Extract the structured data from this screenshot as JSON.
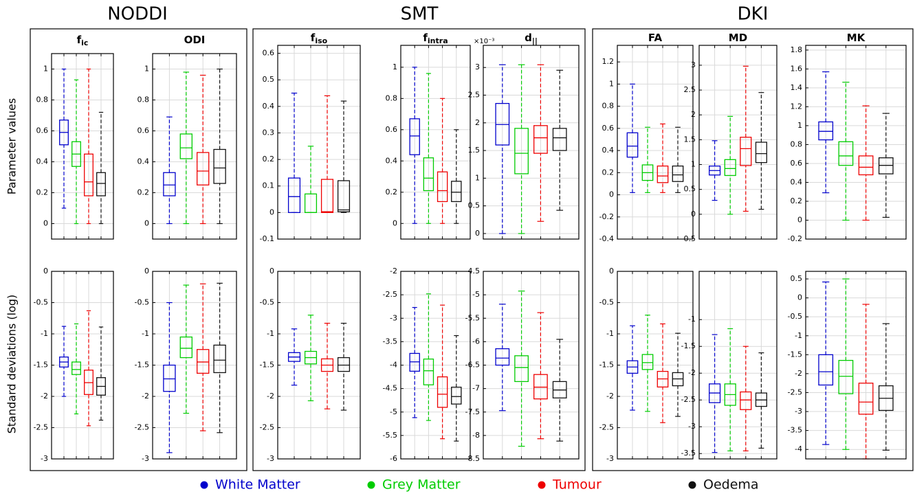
{
  "groups": [
    "NODDI",
    "SMT",
    "DKI"
  ],
  "row_labels": [
    "Parameter values",
    "Standard deviations (log)"
  ],
  "legend": [
    {
      "name": "White Matter",
      "color": "#0000cc"
    },
    {
      "name": "Grey Matter",
      "color": "#00cc00"
    },
    {
      "name": "Tumour",
      "color": "#ee0000"
    },
    {
      "name": "Oedema",
      "color": "#111111"
    }
  ],
  "chart_data": [
    {
      "type": "box",
      "title": "f",
      "title_subscript": "ic",
      "grid": true,
      "ylim": [
        -0.1,
        1.1
      ],
      "yticks": [
        0,
        0.2,
        0.4,
        0.6,
        0.8,
        1
      ],
      "boxes": [
        [
          0.1,
          0.51,
          0.59,
          0.67,
          1.0
        ],
        [
          0,
          0.37,
          0.45,
          0.53,
          0.93
        ],
        [
          0,
          0.18,
          0.27,
          0.45,
          1.0
        ],
        [
          0,
          0.18,
          0.26,
          0.33,
          0.72
        ]
      ]
    },
    {
      "type": "box",
      "title": "ODI",
      "grid": true,
      "ylim": [
        -0.1,
        1.1
      ],
      "yticks": [
        0,
        0.2,
        0.4,
        0.6,
        0.8,
        1
      ],
      "boxes": [
        [
          0,
          0.18,
          0.25,
          0.33,
          0.69
        ],
        [
          0,
          0.42,
          0.49,
          0.58,
          0.98
        ],
        [
          0,
          0.25,
          0.34,
          0.46,
          0.96
        ],
        [
          0,
          0.26,
          0.36,
          0.48,
          1.0
        ]
      ]
    },
    {
      "type": "box",
      "title": "f",
      "title_subscript": "iso",
      "grid": true,
      "ylim": [
        -0.1,
        0.63
      ],
      "yticks": [
        -0.1,
        0,
        0.1,
        0.2,
        0.3,
        0.4,
        0.5,
        0.6
      ],
      "boxes": [
        [
          0,
          0,
          0.06,
          0.13,
          0.45
        ],
        [
          0,
          0,
          0,
          0.07,
          0.25
        ],
        [
          0,
          0,
          0.003,
          0.125,
          0.44
        ],
        [
          0,
          0.003,
          0.01,
          0.12,
          0.42
        ]
      ]
    },
    {
      "type": "box",
      "title": "f",
      "title_subscript": "intra",
      "grid": true,
      "ylim": [
        -0.1,
        1.14
      ],
      "yticks": [
        0,
        0.2,
        0.4,
        0.6,
        0.8,
        1
      ],
      "boxes": [
        [
          0,
          0.44,
          0.56,
          0.67,
          1.0
        ],
        [
          0,
          0.21,
          0.29,
          0.42,
          0.96
        ],
        [
          0,
          0.14,
          0.21,
          0.33,
          0.8
        ],
        [
          0,
          0.14,
          0.2,
          0.27,
          0.6
        ]
      ]
    },
    {
      "type": "box",
      "title": "d",
      "title_subscript": "||",
      "y_scale_label": "×10⁻³",
      "grid": true,
      "ylim": [
        -0.1,
        3.4
      ],
      "yticks": [
        0,
        0.5,
        1,
        1.5,
        2,
        2.5,
        3
      ],
      "boxes": [
        [
          0,
          1.6,
          1.97,
          2.35,
          3.05
        ],
        [
          0,
          1.08,
          1.45,
          1.9,
          3.05
        ],
        [
          0.22,
          1.45,
          1.73,
          1.95,
          3.05
        ],
        [
          0.42,
          1.5,
          1.73,
          1.9,
          2.95
        ]
      ]
    },
    {
      "type": "box",
      "title": "FA",
      "grid": true,
      "ylim": [
        -0.4,
        1.35
      ],
      "yticks": [
        -0.4,
        -0.2,
        0,
        0.2,
        0.4,
        0.6,
        0.8,
        1,
        1.2
      ],
      "boxes": [
        [
          0.02,
          0.34,
          0.44,
          0.56,
          1.0
        ],
        [
          0.02,
          0.13,
          0.2,
          0.27,
          0.61
        ],
        [
          0.02,
          0.11,
          0.17,
          0.26,
          0.64
        ],
        [
          0.02,
          0.12,
          0.18,
          0.26,
          0.61
        ]
      ]
    },
    {
      "type": "box",
      "title": "MD",
      "grid": true,
      "ylim": [
        -0.5,
        3.4
      ],
      "yticks": [
        -0.5,
        0,
        0.5,
        1,
        1.5,
        2,
        2.5,
        3
      ],
      "boxes": [
        [
          0.28,
          0.79,
          0.88,
          0.97,
          1.48
        ],
        [
          0,
          0.78,
          0.92,
          1.1,
          1.97
        ],
        [
          0.06,
          0.98,
          1.32,
          1.55,
          2.98
        ],
        [
          0.1,
          1.04,
          1.22,
          1.45,
          2.45
        ]
      ]
    },
    {
      "type": "box",
      "title": "MK",
      "grid": true,
      "ylim": [
        -0.2,
        1.85
      ],
      "yticks": [
        -0.2,
        0,
        0.2,
        0.4,
        0.6,
        0.8,
        1,
        1.2,
        1.4,
        1.6,
        1.8
      ],
      "boxes": [
        [
          0.29,
          0.85,
          0.94,
          1.04,
          1.57
        ],
        [
          0,
          0.58,
          0.68,
          0.83,
          1.46
        ],
        [
          0,
          0.48,
          0.56,
          0.68,
          1.21
        ],
        [
          0.03,
          0.49,
          0.58,
          0.66,
          1.13
        ]
      ]
    },
    {
      "type": "box",
      "grid": true,
      "ylim": [
        -3,
        0
      ],
      "yticks": [
        -3,
        -2.5,
        -2,
        -1.5,
        -1,
        -0.5,
        0
      ],
      "boxes": [
        [
          -2.0,
          -1.53,
          -1.45,
          -1.37,
          -0.88
        ],
        [
          -2.28,
          -1.65,
          -1.57,
          -1.45,
          -0.84
        ],
        [
          -2.47,
          -1.97,
          -1.78,
          -1.58,
          -0.63
        ],
        [
          -2.38,
          -1.98,
          -1.84,
          -1.7,
          -0.89
        ]
      ]
    },
    {
      "type": "box",
      "grid": true,
      "ylim": [
        -3,
        0
      ],
      "yticks": [
        -3,
        -2.5,
        -2,
        -1.5,
        -1,
        -0.5,
        0
      ],
      "boxes": [
        [
          -2.9,
          -1.92,
          -1.72,
          -1.5,
          -0.5
        ],
        [
          -2.27,
          -1.38,
          -1.23,
          -1.05,
          -0.22
        ],
        [
          -2.55,
          -1.63,
          -1.45,
          -1.25,
          -0.2
        ],
        [
          -2.58,
          -1.62,
          -1.42,
          -1.18,
          -0.19
        ]
      ]
    },
    {
      "type": "box",
      "grid": true,
      "ylim": [
        -3,
        0
      ],
      "yticks": [
        -3,
        -2.5,
        -2,
        -1.5,
        -1,
        -0.5,
        0
      ],
      "boxes": [
        [
          -1.82,
          -1.44,
          -1.37,
          -1.3,
          -0.92
        ],
        [
          -2.07,
          -1.48,
          -1.38,
          -1.28,
          -0.7
        ],
        [
          -2.2,
          -1.6,
          -1.5,
          -1.4,
          -0.83
        ],
        [
          -2.22,
          -1.6,
          -1.5,
          -1.38,
          -0.83
        ]
      ]
    },
    {
      "type": "box",
      "grid": true,
      "ylim": [
        -6,
        -2
      ],
      "yticks": [
        -6,
        -5.5,
        -5,
        -4.5,
        -4,
        -3.5,
        -3,
        -2.5,
        -2
      ],
      "boxes": [
        [
          -5.12,
          -4.13,
          -3.93,
          -3.75,
          -2.77
        ],
        [
          -5.18,
          -4.42,
          -4.12,
          -3.87,
          -2.48
        ],
        [
          -5.57,
          -4.9,
          -4.62,
          -4.25,
          -2.72
        ],
        [
          -5.62,
          -4.83,
          -4.67,
          -4.47,
          -3.37
        ]
      ]
    },
    {
      "type": "box",
      "grid": true,
      "ylim": [
        -8.5,
        -4.5
      ],
      "yticks": [
        -8.5,
        -8,
        -7.5,
        -7,
        -6.5,
        -6,
        -5.5,
        -5,
        -4.5
      ],
      "boxes": [
        [
          -7.47,
          -6.5,
          -6.35,
          -6.15,
          -5.2
        ],
        [
          -8.23,
          -6.85,
          -6.55,
          -6.3,
          -4.92
        ],
        [
          -8.07,
          -7.22,
          -6.97,
          -6.7,
          -5.38
        ],
        [
          -8.12,
          -7.2,
          -7.03,
          -6.85,
          -5.95
        ]
      ]
    },
    {
      "type": "box",
      "grid": true,
      "ylim": [
        -3,
        0
      ],
      "yticks": [
        -3,
        -2.5,
        -2,
        -1.5,
        -1,
        -0.5,
        0
      ],
      "boxes": [
        [
          -2.22,
          -1.63,
          -1.53,
          -1.43,
          -0.87
        ],
        [
          -2.24,
          -1.57,
          -1.46,
          -1.33,
          -0.7
        ],
        [
          -2.42,
          -1.85,
          -1.72,
          -1.6,
          -0.84
        ],
        [
          -2.32,
          -1.83,
          -1.72,
          -1.62,
          -0.99
        ]
      ]
    },
    {
      "type": "box",
      "grid": true,
      "ylim": [
        -3.6,
        -0.1
      ],
      "yticks": [
        -3.5,
        -3,
        -2.5,
        -2,
        -1.5,
        -1
      ],
      "boxes": [
        [
          -3.48,
          -2.55,
          -2.37,
          -2.2,
          -1.28
        ],
        [
          -3.45,
          -2.6,
          -2.4,
          -2.2,
          -1.17
        ],
        [
          -3.45,
          -2.68,
          -2.5,
          -2.35,
          -1.5
        ],
        [
          -3.4,
          -2.62,
          -2.5,
          -2.37,
          -1.62
        ]
      ]
    },
    {
      "type": "box",
      "grid": true,
      "ylim": [
        -4.25,
        0.7
      ],
      "yticks": [
        -4,
        -3.5,
        -3,
        -2.5,
        -2,
        -1.5,
        -1,
        -0.5,
        0,
        0.5
      ],
      "boxes": [
        [
          -3.87,
          -2.3,
          -1.95,
          -1.5,
          0.42
        ],
        [
          -4.0,
          -2.53,
          -2.07,
          -1.65,
          0.5
        ],
        [
          -4.25,
          -3.07,
          -2.75,
          -2.25,
          -0.17
        ],
        [
          -4.02,
          -2.97,
          -2.65,
          -2.32,
          -0.68
        ]
      ]
    }
  ]
}
